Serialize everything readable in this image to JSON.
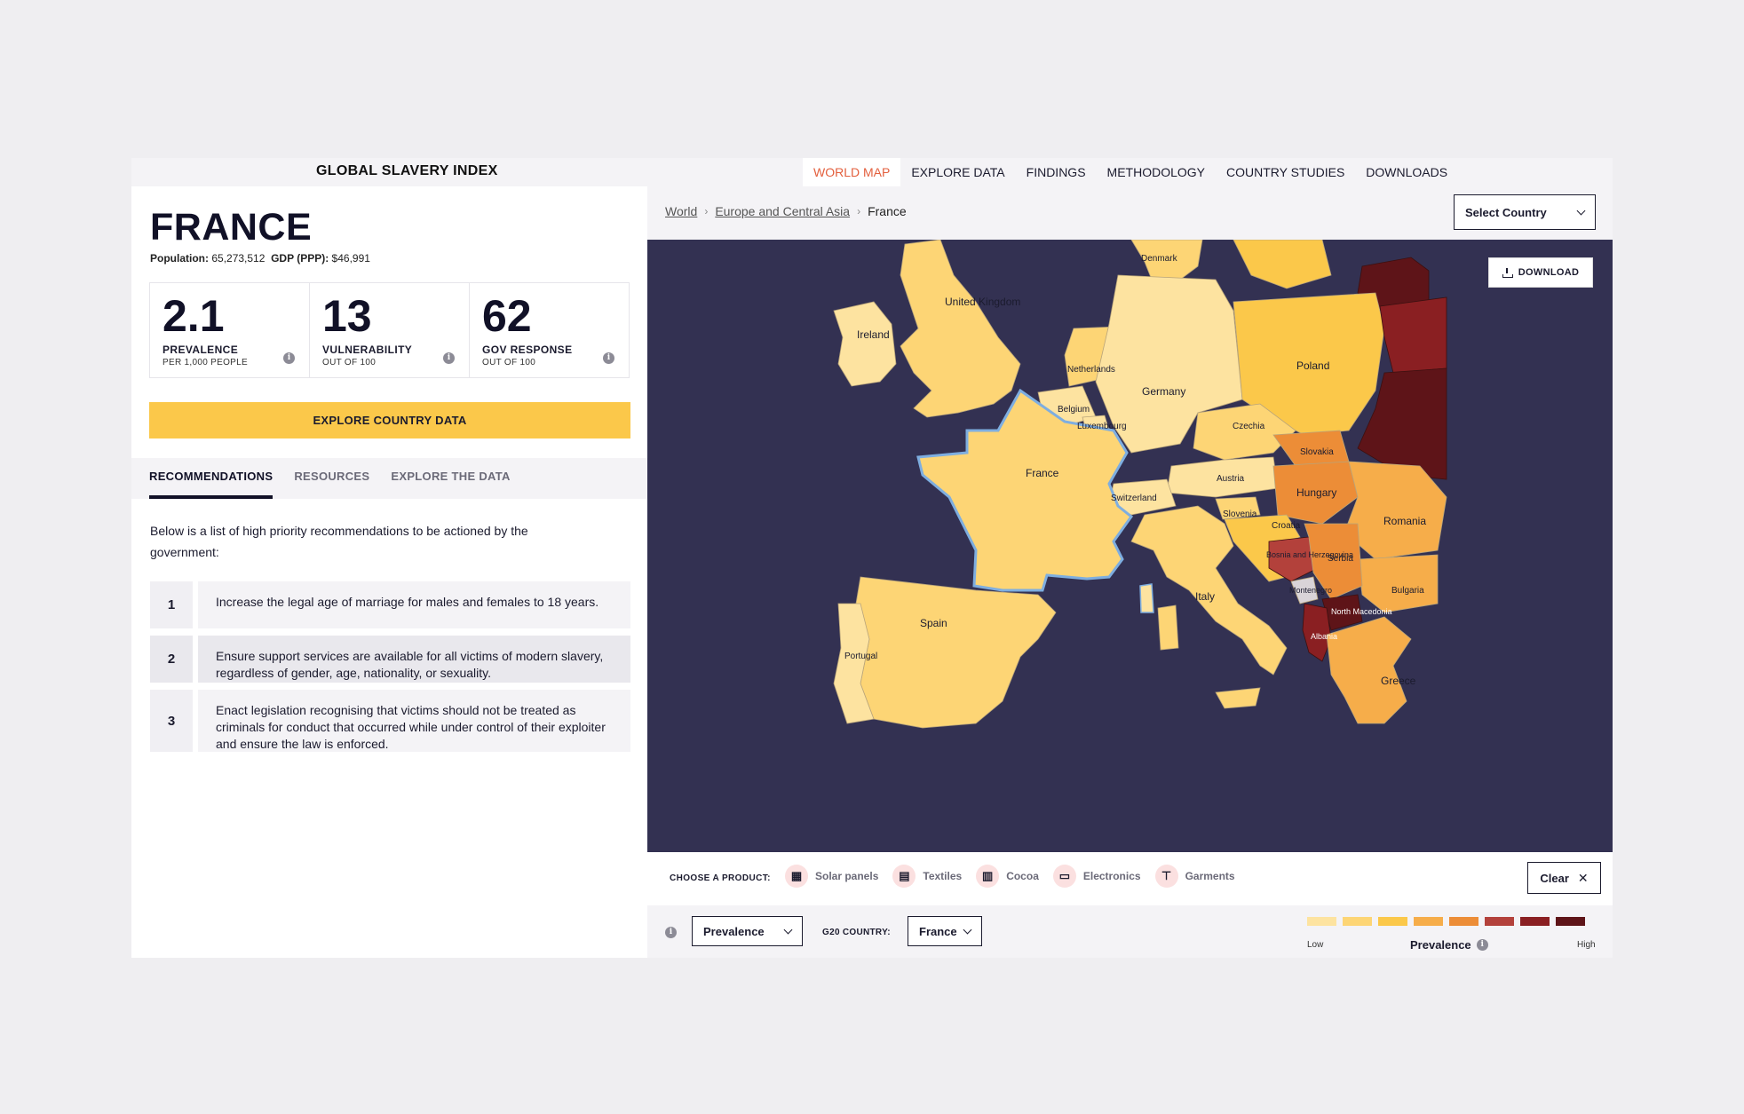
{
  "brand": "GLOBAL SLAVERY INDEX",
  "nav": [
    {
      "label": "WORLD MAP",
      "active": true
    },
    {
      "label": "EXPLORE DATA"
    },
    {
      "label": "FINDINGS"
    },
    {
      "label": "METHODOLOGY"
    },
    {
      "label": "COUNTRY STUDIES"
    },
    {
      "label": "DOWNLOADS"
    }
  ],
  "country": {
    "name": "FRANCE",
    "population_label": "Population:",
    "population": "65,273,512",
    "gdp_label": "GDP (PPP):",
    "gdp": "$46,991"
  },
  "stats": [
    {
      "value": "2.1",
      "label": "PREVALENCE",
      "sub": "PER 1,000 PEOPLE"
    },
    {
      "value": "13",
      "label": "VULNERABILITY",
      "sub": "OUT OF 100"
    },
    {
      "value": "62",
      "label": "GOV RESPONSE",
      "sub": "OUT OF 100"
    }
  ],
  "explore_button": "EXPLORE COUNTRY DATA",
  "tabs": [
    {
      "label": "RECOMMENDATIONS",
      "active": true
    },
    {
      "label": "RESOURCES"
    },
    {
      "label": "EXPLORE THE DATA"
    }
  ],
  "intro": "Below is a list of high priority recommendations to be actioned by the government:",
  "recommendations": [
    {
      "num": "1",
      "text": "Increase the legal age of marriage for males and females to 18 years."
    },
    {
      "num": "2",
      "text": "Ensure support services are available for all victims of modern slavery, regardless of gender, age, nationality, or sexuality."
    },
    {
      "num": "3",
      "text": "Enact legislation recognising that victims should not be treated as criminals for conduct that occurred while under control of their exploiter and ensure the law is enforced."
    }
  ],
  "breadcrumb": {
    "world": "World",
    "region": "Europe and Central Asia",
    "current": "France"
  },
  "select_country": "Select Country",
  "download_label": "DOWNLOAD",
  "map_labels": {
    "denmark": "Denmark",
    "uk": "United Kingdom",
    "ireland": "Ireland",
    "netherlands": "Netherlands",
    "germany": "Germany",
    "poland": "Poland",
    "belgium": "Belgium",
    "luxembourg": "Luxembourg",
    "czechia": "Czechia",
    "slovakia": "Slovakia",
    "france": "France",
    "austria": "Austria",
    "hungary": "Hungary",
    "switzerland": "Switzerland",
    "slovenia": "Slovenia",
    "croatia": "Croatia",
    "romania": "Romania",
    "bosnia": "Bosnia and Herzegovina",
    "serbia": "Serbia",
    "montenegro": "Montenegro",
    "bulgaria": "Bulgaria",
    "italy": "Italy",
    "north_macedonia": "North Macedonia",
    "spain": "Spain",
    "albania": "Albania",
    "portugal": "Portugal",
    "greece": "Greece"
  },
  "product_label": "CHOOSE A PRODUCT:",
  "products": [
    {
      "label": "Solar panels",
      "icon": "solar-panel-icon"
    },
    {
      "label": "Textiles",
      "icon": "textiles-icon"
    },
    {
      "label": "Cocoa",
      "icon": "cocoa-icon"
    },
    {
      "label": "Electronics",
      "icon": "laptop-icon"
    },
    {
      "label": "Garments",
      "icon": "shirt-icon"
    }
  ],
  "clear_label": "Clear",
  "metric_select": "Prevalence",
  "g20_label": "G20 COUNTRY:",
  "g20_select": "France",
  "legend": {
    "low": "Low",
    "title": "Prevalence",
    "high": "High",
    "colors": [
      "#fde3a0",
      "#fdd575",
      "#fbc84a",
      "#f6ad4a",
      "#ec8d37",
      "#b3413b",
      "#8a1f22",
      "#5e1418"
    ]
  },
  "colors": {
    "accent": "#e35f3d",
    "button_yellow": "#fbc84a",
    "ocean": "#333152",
    "france_border": "#7eaee0"
  }
}
